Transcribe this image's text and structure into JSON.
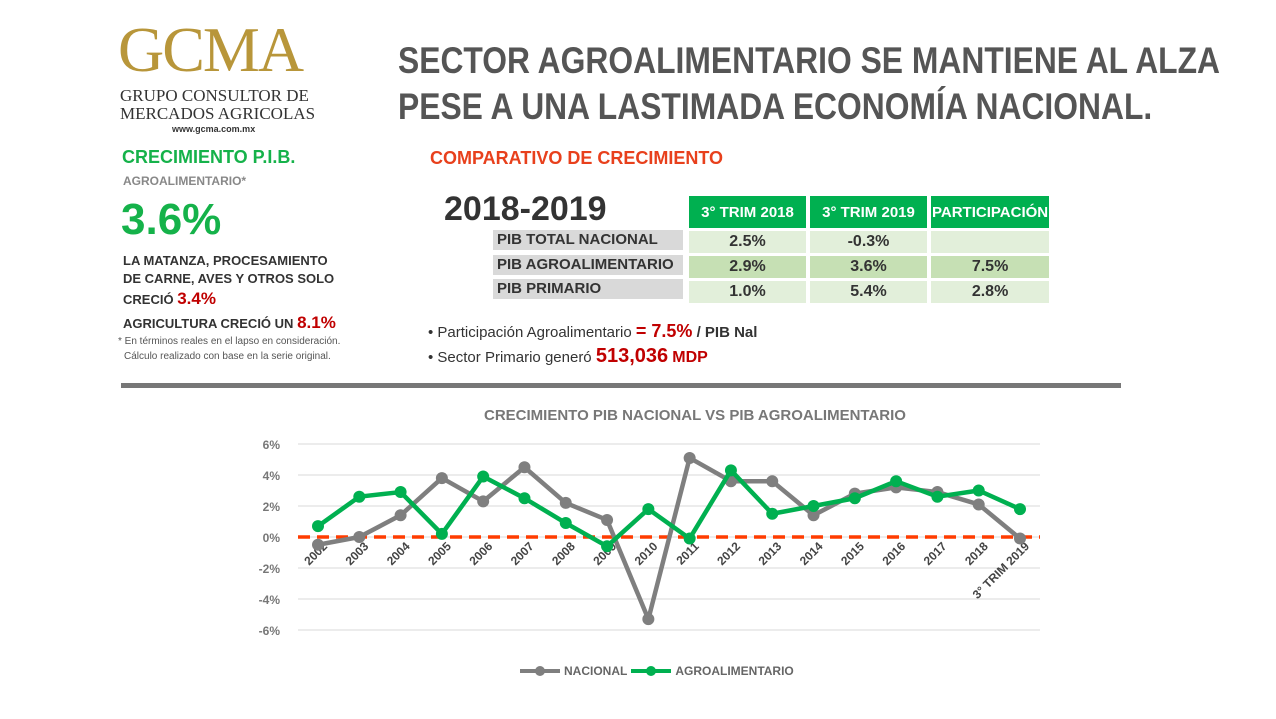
{
  "logo": {
    "letters": "GCMA",
    "line1": "GRUPO CONSULTOR DE",
    "line2": "MERCADOS AGRICOLAS",
    "url": "www.gcma.com.mx"
  },
  "title": {
    "line1": "SECTOR AGROALIMENTARIO SE MANTIENE AL ALZA",
    "line2": "PESE A UNA LASTIMADA ECONOMÍA NACIONAL."
  },
  "left": {
    "heading": "CRECIMIENTO P.I.B.",
    "subheading": "AGROALIMENTARIO*",
    "big_value": "3.6%",
    "matanza_l1": "LA MATANZA, PROCESAMIENTO",
    "matanza_l2": "DE CARNE, AVES Y OTROS SOLO",
    "matanza_l3": "CRECIÓ",
    "matanza_value": "3.4%",
    "agri_text": "AGRICULTURA CRECIÓ UN",
    "agri_value": "8.1%",
    "note_l1": "* En términos reales en el lapso en consideración.",
    "note_l2": "Cálculo realizado con base en la serie original."
  },
  "comparativo": {
    "heading": "COMPARATIVO DE CRECIMIENTO",
    "period": "2018-2019",
    "headers": [
      "3° TRIM 2018",
      "3° TRIM 2019",
      "PARTICIPACIÓN"
    ],
    "rows": [
      {
        "label": "PIB TOTAL NACIONAL",
        "values": [
          "2.5%",
          "-0.3%",
          ""
        ]
      },
      {
        "label": "PIB AGROALIMENTARIO",
        "values": [
          "2.9%",
          "3.6%",
          "7.5%"
        ]
      },
      {
        "label": "PIB PRIMARIO",
        "values": [
          "1.0%",
          "5.4%",
          "2.8%"
        ]
      }
    ],
    "bullet1_text": "• Participación Agroalimentario",
    "bullet1_value": "= 7.5%",
    "bullet1_suffix": "/ PIB Nal",
    "bullet2_text": "• Sector Primario generó",
    "bullet2_value": "513,036",
    "bullet2_unit": "MDP"
  },
  "colors": {
    "nacional": "#7f7f7f",
    "agro": "#00b050",
    "zero_line": "#ff3c00"
  },
  "chart_data": {
    "type": "line",
    "title": "CRECIMIENTO PIB NACIONAL VS PIB AGROALIMENTARIO",
    "categories": [
      "2002",
      "2003",
      "2004",
      "2005",
      "2006",
      "2007",
      "2008",
      "2009",
      "2010",
      "2011",
      "2012",
      "2013",
      "2014",
      "2015",
      "2016",
      "2017",
      "2018",
      "3° TRIM 2019"
    ],
    "yticks": [
      "6%",
      "4%",
      "2%",
      "0%",
      "-2%",
      "-4%",
      "-6%"
    ],
    "ylim": [
      -6,
      6
    ],
    "grid": true,
    "legend": "bottom",
    "series": [
      {
        "name": "NACIONAL",
        "values": [
          -0.5,
          0,
          1.4,
          3.8,
          2.3,
          4.5,
          2.2,
          1.1,
          -5.3,
          5.1,
          3.6,
          3.6,
          1.4,
          2.8,
          3.2,
          2.9,
          2.1,
          -0.1
        ]
      },
      {
        "name": "AGROALIMENTARIO",
        "values": [
          0.7,
          2.6,
          2.9,
          0.2,
          3.9,
          2.5,
          0.9,
          -0.6,
          1.8,
          -0.1,
          4.3,
          1.5,
          2.0,
          2.5,
          3.6,
          2.6,
          3.0,
          1.8
        ]
      }
    ]
  }
}
